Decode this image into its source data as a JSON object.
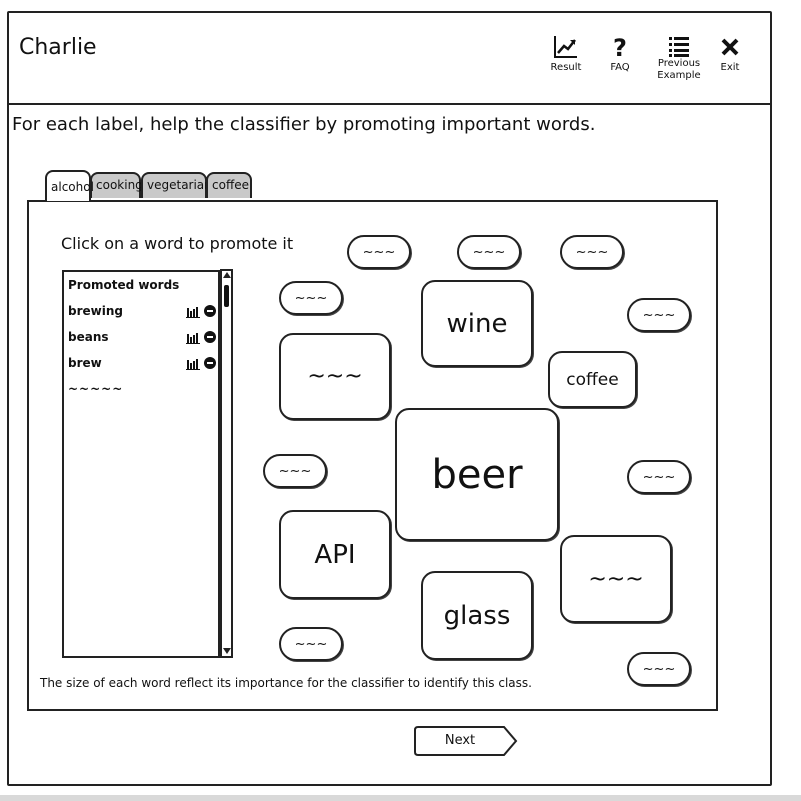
{
  "app": {
    "title": "Charlie"
  },
  "toolbar": {
    "result_label": "Result",
    "faq_label": "FAQ",
    "previous_label_line1": "Previous",
    "previous_label_line2": "Example",
    "exit_label": "Exit"
  },
  "instruction": "For each label, help the classifier by promoting important words.",
  "tabs": [
    {
      "label": "alcohol",
      "active": true
    },
    {
      "label": "cooking",
      "active": false
    },
    {
      "label": "vegetarian",
      "active": false
    },
    {
      "label": "coffee",
      "active": false
    }
  ],
  "panel": {
    "hint": "Click on a word to promote it",
    "promoted": {
      "header": "Promoted words",
      "items": [
        "brewing",
        "beans",
        "brew"
      ],
      "more": "~~~~~"
    },
    "footer_note": "The size of each word reflect its importance for the classifier to identify this class.",
    "cloud_words": [
      "~~~",
      "~~~",
      "~~~",
      "~~~",
      "wine",
      "~~~",
      "~~~",
      "coffee",
      "beer",
      "~~~",
      "~~~",
      "API",
      "~~~",
      "glass",
      "~~~",
      "~~~"
    ]
  },
  "next_label": "Next"
}
